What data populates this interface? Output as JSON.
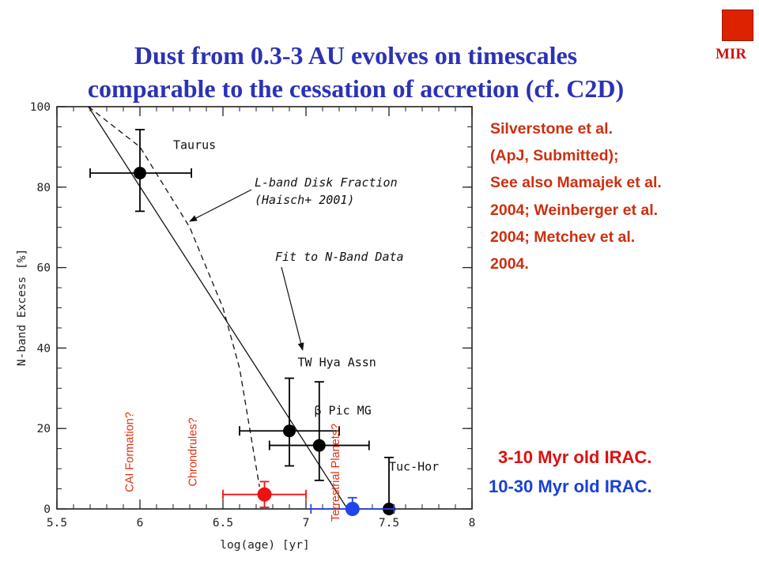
{
  "title_lines": [
    "Dust from 0.3-3 AU evolves on timescales",
    "comparable to the cessation of accretion (cf. C2D)"
  ],
  "corner_label": "MIR",
  "corner_box_color": "#dd2200",
  "reference_lines": [
    "Silverstone et al.",
    "(ApJ, Submitted);",
    "See also Mamajek et al.",
    "2004; Weinberger et al.",
    "2004; Metchev et al.",
    "2004."
  ],
  "legend": {
    "irac_3_10": "3-10 Myr old IRAC.",
    "irac_10_30": "10-30 Myr old IRAC."
  },
  "colors": {
    "title": "#2b32b6",
    "reference_text": "#cc3010",
    "red_series": "#ee1111",
    "blue_series": "#2244ee",
    "black_series": "#000000",
    "vertical_labels": "#e03010"
  },
  "chart_data": {
    "type": "scatter",
    "xlabel": "log(age) [yr]",
    "ylabel": "N-band Excess [%]",
    "xlim": [
      5.5,
      8
    ],
    "ylim": [
      0,
      100
    ],
    "x_ticks": [
      "5.5",
      "6",
      "6.5",
      "7",
      "7.5",
      "8"
    ],
    "y_ticks": [
      "0",
      "20",
      "40",
      "60",
      "80",
      "100"
    ],
    "series": [
      {
        "name": "N-band excess",
        "color": "#000000",
        "points": [
          {
            "label": "Taurus",
            "x": 6.0,
            "y": 83.5,
            "xerr": [
              0.3,
              0.31
            ],
            "yerr": [
              9.5,
              10.8
            ]
          },
          {
            "label": "TW Hya Assn",
            "x": 6.9,
            "y": 19.4,
            "xerr": [
              0.3,
              0.3
            ],
            "yerr": [
              8.7,
              13.1
            ]
          },
          {
            "label": "β Pic MG",
            "x": 7.08,
            "y": 15.8,
            "xerr": [
              0.3,
              0.3
            ],
            "yerr": [
              8.7,
              15.8
            ]
          },
          {
            "label": "Tuc-Hor",
            "x": 7.5,
            "y": 0.0,
            "xerr": [
              0,
              0
            ],
            "yerr": [
              0,
              12.8
            ]
          }
        ]
      },
      {
        "name": "3-10 Myr old IRAC.",
        "color": "#ee1111",
        "points": [
          {
            "x": 6.75,
            "y": 3.6,
            "xerr": [
              0.25,
              0.25
            ],
            "yerr": [
              3.2,
              3.2
            ]
          }
        ]
      },
      {
        "name": "10-30 Myr old IRAC.",
        "color": "#2244ee",
        "points": [
          {
            "x": 7.28,
            "y": 0.0,
            "xerr": [
              0.25,
              0.25
            ],
            "yerr": [
              0,
              2.8
            ]
          }
        ]
      }
    ],
    "curves": [
      {
        "label": "Fit to N-Band Data",
        "style": "solid",
        "points": [
          [
            5.69,
            100
          ],
          [
            7.25,
            0
          ]
        ]
      },
      {
        "label": "L-band Disk Fraction (Haisch+ 2001)",
        "style": "dashed",
        "points": [
          [
            5.69,
            100
          ],
          [
            6.0,
            90
          ],
          [
            6.3,
            70
          ],
          [
            6.5,
            50
          ],
          [
            6.6,
            35
          ],
          [
            6.72,
            5.5
          ]
        ]
      }
    ],
    "annotations": [
      {
        "text": "L-band Disk Fraction",
        "text2": "(Haisch+ 2001)",
        "arrow_to": [
          6.3,
          71.5
        ]
      },
      {
        "text": "Fit to N-Band Data",
        "arrow_to": [
          6.98,
          39.5
        ]
      }
    ],
    "group_labels": [
      {
        "text": "Taurus",
        "x": 6.2,
        "y": 89.5
      },
      {
        "text": "TW Hya Assn",
        "x": 6.95,
        "y": 35.5
      },
      {
        "text": "β Pic MG",
        "x": 7.05,
        "y": 23.5
      },
      {
        "text": "Tuc-Hor",
        "x": 7.5,
        "y": 9.5
      }
    ],
    "vertical_labels": [
      {
        "text": "CAI Formation?",
        "x": 5.96
      },
      {
        "text": "Chrondrules?",
        "x": 6.34
      },
      {
        "text": "Terrestrial Planets?",
        "x": 7.2
      }
    ]
  }
}
